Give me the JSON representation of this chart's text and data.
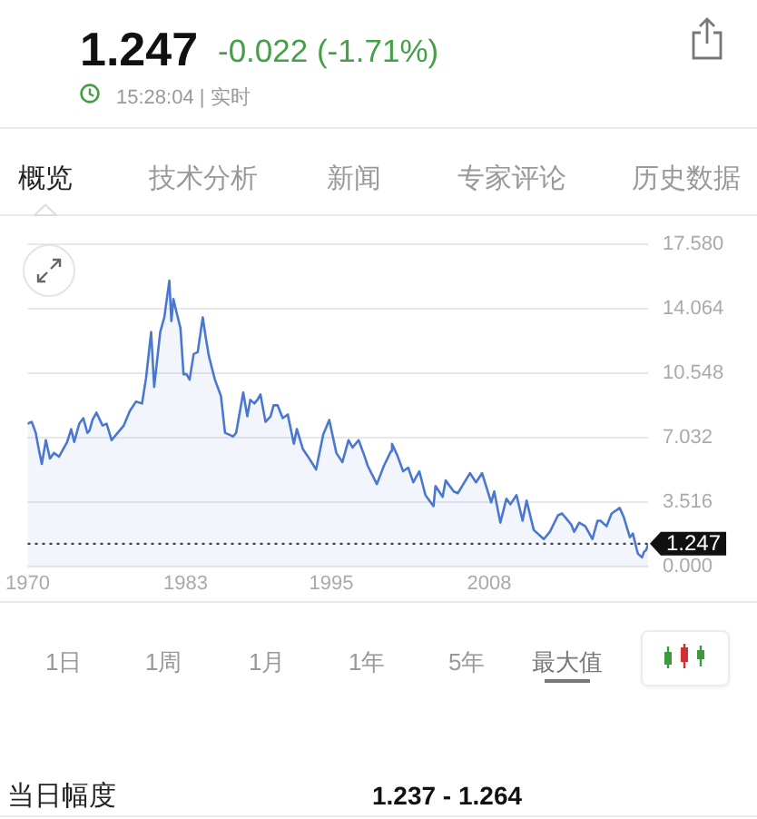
{
  "chart_data": {
    "type": "area",
    "title": "1.247",
    "subtitle": "-0.022 (-1.71%)",
    "x": [
      "1970-01",
      "1970-05",
      "1970-09",
      "1970-12",
      "1971-03",
      "1971-07",
      "1971-11",
      "1972-03",
      "1972-08",
      "1972-12",
      "1973-04",
      "1973-08",
      "1973-11",
      "1974-04",
      "1974-08",
      "1974-12",
      "1975-02",
      "1975-05",
      "1975-09",
      "1976-03",
      "1976-07",
      "1976-12",
      "1977-06",
      "1977-12",
      "1978-06",
      "1978-12",
      "1979-06",
      "1979-10",
      "1980-03",
      "1980-06",
      "1980-12",
      "1981-04",
      "1981-09",
      "1981-11",
      "1982-01",
      "1982-04",
      "1982-08",
      "1982-11",
      "1983-02",
      "1983-05",
      "1983-09",
      "1984-01",
      "1984-06",
      "1984-09",
      "1984-12",
      "1985-06",
      "1985-12",
      "1986-04",
      "1986-08",
      "1986-12",
      "1987-03",
      "1987-10",
      "1988-02",
      "1988-05",
      "1988-09",
      "1988-12",
      "1989-03",
      "1989-08",
      "1990-01",
      "1990-04",
      "1990-08",
      "1991-01",
      "1991-06",
      "1991-12",
      "1992-03",
      "1992-09",
      "1993-02",
      "1993-10",
      "1994-05",
      "1994-11",
      "1995-06",
      "1995-12",
      "1996-06",
      "1996-10",
      "1997-04",
      "1997-10",
      "1998-01",
      "1998-10",
      "1999-05",
      "1999-12",
      "2000-01",
      "2000-06",
      "2000-12",
      "2001-05",
      "2001-10",
      "2002-04",
      "2002-10",
      "2003-06",
      "2003-08",
      "2004-03",
      "2004-06",
      "2005-02",
      "2005-06",
      "2006-06",
      "2006-12",
      "2007-06",
      "2008-03",
      "2008-06",
      "2008-12",
      "2009-06",
      "2009-10",
      "2010-04",
      "2010-10",
      "2011-02",
      "2011-09",
      "2012-07",
      "2013-01",
      "2013-09",
      "2014-01",
      "2014-10",
      "2015-01",
      "2015-06",
      "2015-12",
      "2016-07",
      "2016-12",
      "2017-03",
      "2017-09",
      "2018-02",
      "2018-10",
      "2019-02",
      "2019-08",
      "2019-11",
      "2020-03",
      "2020-04",
      "2020-08",
      "2020-10",
      "2020-12",
      "2021-02"
    ],
    "values": [
      7.8,
      7.9,
      7.3,
      6.4,
      5.6,
      6.9,
      5.9,
      6.2,
      6.0,
      6.4,
      6.8,
      7.5,
      6.8,
      7.8,
      8.1,
      7.3,
      7.4,
      8.0,
      8.4,
      7.7,
      7.8,
      6.9,
      7.3,
      7.7,
      8.5,
      9.0,
      8.9,
      10.3,
      12.8,
      9.8,
      12.8,
      13.6,
      15.6,
      13.4,
      14.6,
      13.9,
      13.0,
      10.5,
      10.5,
      10.2,
      11.6,
      11.7,
      13.6,
      12.5,
      11.5,
      10.2,
      9.3,
      7.3,
      7.2,
      7.1,
      7.3,
      9.5,
      8.2,
      9.1,
      8.9,
      9.1,
      9.4,
      7.9,
      8.2,
      8.8,
      8.8,
      8.1,
      8.3,
      6.7,
      7.5,
      6.4,
      6.0,
      5.3,
      7.2,
      8.0,
      6.2,
      5.7,
      6.9,
      6.5,
      6.9,
      6.0,
      5.5,
      4.5,
      5.5,
      6.3,
      6.7,
      6.1,
      5.2,
      5.4,
      4.6,
      5.2,
      3.9,
      3.3,
      4.4,
      3.8,
      4.7,
      4.1,
      4.0,
      5.1,
      4.6,
      5.1,
      3.5,
      4.1,
      2.4,
      3.7,
      3.4,
      3.9,
      2.5,
      3.6,
      2.0,
      1.5,
      1.9,
      2.8,
      2.9,
      2.3,
      1.9,
      2.4,
      2.2,
      1.5,
      2.5,
      2.5,
      2.2,
      2.9,
      3.2,
      2.7,
      1.6,
      1.8,
      0.9,
      0.7,
      0.5,
      0.8,
      0.9,
      1.2
    ],
    "color": "#4a78d0",
    "xlim": [
      "1970-01",
      "2021-02"
    ],
    "xticks": [
      "1970",
      "1983",
      "1995",
      "2008"
    ],
    "ylim": [
      0,
      17.58
    ],
    "yticks": [
      {
        "value": 0,
        "label": "0.000"
      },
      3.516,
      7.032,
      10.548,
      14.064,
      {
        "value": 17.58,
        "label": "17.580"
      }
    ],
    "grid": "y",
    "ref_lines": [
      {
        "axis": "y",
        "value": 1.247,
        "label": "1.247",
        "line_style": "dotted",
        "color": "#444444"
      }
    ],
    "annotations": [
      "15:28:04 | 实时",
      "概览",
      "技术分析",
      "新闻",
      "专家评论",
      "历史数据",
      "1日",
      "1周",
      "1月",
      "1年",
      "5年",
      "最大值",
      "当日幅度",
      "1.237 - 1.264"
    ]
  }
}
